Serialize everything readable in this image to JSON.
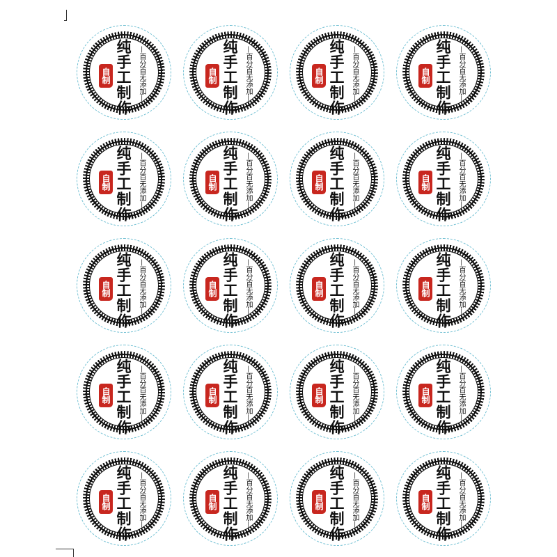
{
  "sticker_template": {
    "main_text": "纯手工制作",
    "sub_text": "—百分百无添加—",
    "seal_text": "自制"
  },
  "colors": {
    "seal_red": "#c8271f",
    "outer_dashed": "#6fbfd2",
    "ink": "#111111"
  },
  "stickers": [
    {},
    {},
    {},
    {},
    {},
    {},
    {},
    {},
    {},
    {},
    {},
    {},
    {},
    {},
    {},
    {},
    {},
    {},
    {},
    {}
  ]
}
